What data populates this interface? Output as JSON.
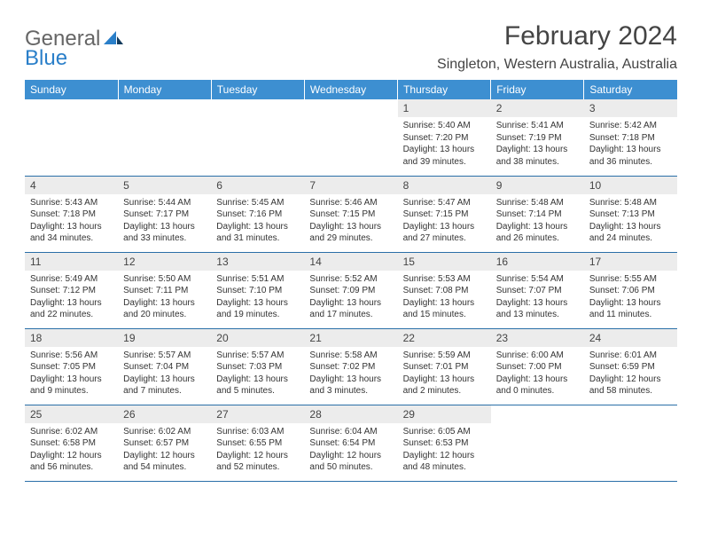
{
  "brand": {
    "general": "General",
    "blue": "Blue"
  },
  "title": "February 2024",
  "location": "Singleton, Western Australia, Australia",
  "colors": {
    "header_bg": "#3d8fd1",
    "header_text": "#ffffff",
    "daynum_bg": "#ececec",
    "row_border": "#2a6fa8",
    "text": "#333333",
    "logo_blue": "#2a7fc9"
  },
  "dayHeaders": [
    "Sunday",
    "Monday",
    "Tuesday",
    "Wednesday",
    "Thursday",
    "Friday",
    "Saturday"
  ],
  "weeks": [
    [
      null,
      null,
      null,
      null,
      {
        "n": "1",
        "sr": "5:40 AM",
        "ss": "7:20 PM",
        "dl": "13 hours and 39 minutes."
      },
      {
        "n": "2",
        "sr": "5:41 AM",
        "ss": "7:19 PM",
        "dl": "13 hours and 38 minutes."
      },
      {
        "n": "3",
        "sr": "5:42 AM",
        "ss": "7:18 PM",
        "dl": "13 hours and 36 minutes."
      }
    ],
    [
      {
        "n": "4",
        "sr": "5:43 AM",
        "ss": "7:18 PM",
        "dl": "13 hours and 34 minutes."
      },
      {
        "n": "5",
        "sr": "5:44 AM",
        "ss": "7:17 PM",
        "dl": "13 hours and 33 minutes."
      },
      {
        "n": "6",
        "sr": "5:45 AM",
        "ss": "7:16 PM",
        "dl": "13 hours and 31 minutes."
      },
      {
        "n": "7",
        "sr": "5:46 AM",
        "ss": "7:15 PM",
        "dl": "13 hours and 29 minutes."
      },
      {
        "n": "8",
        "sr": "5:47 AM",
        "ss": "7:15 PM",
        "dl": "13 hours and 27 minutes."
      },
      {
        "n": "9",
        "sr": "5:48 AM",
        "ss": "7:14 PM",
        "dl": "13 hours and 26 minutes."
      },
      {
        "n": "10",
        "sr": "5:48 AM",
        "ss": "7:13 PM",
        "dl": "13 hours and 24 minutes."
      }
    ],
    [
      {
        "n": "11",
        "sr": "5:49 AM",
        "ss": "7:12 PM",
        "dl": "13 hours and 22 minutes."
      },
      {
        "n": "12",
        "sr": "5:50 AM",
        "ss": "7:11 PM",
        "dl": "13 hours and 20 minutes."
      },
      {
        "n": "13",
        "sr": "5:51 AM",
        "ss": "7:10 PM",
        "dl": "13 hours and 19 minutes."
      },
      {
        "n": "14",
        "sr": "5:52 AM",
        "ss": "7:09 PM",
        "dl": "13 hours and 17 minutes."
      },
      {
        "n": "15",
        "sr": "5:53 AM",
        "ss": "7:08 PM",
        "dl": "13 hours and 15 minutes."
      },
      {
        "n": "16",
        "sr": "5:54 AM",
        "ss": "7:07 PM",
        "dl": "13 hours and 13 minutes."
      },
      {
        "n": "17",
        "sr": "5:55 AM",
        "ss": "7:06 PM",
        "dl": "13 hours and 11 minutes."
      }
    ],
    [
      {
        "n": "18",
        "sr": "5:56 AM",
        "ss": "7:05 PM",
        "dl": "13 hours and 9 minutes."
      },
      {
        "n": "19",
        "sr": "5:57 AM",
        "ss": "7:04 PM",
        "dl": "13 hours and 7 minutes."
      },
      {
        "n": "20",
        "sr": "5:57 AM",
        "ss": "7:03 PM",
        "dl": "13 hours and 5 minutes."
      },
      {
        "n": "21",
        "sr": "5:58 AM",
        "ss": "7:02 PM",
        "dl": "13 hours and 3 minutes."
      },
      {
        "n": "22",
        "sr": "5:59 AM",
        "ss": "7:01 PM",
        "dl": "13 hours and 2 minutes."
      },
      {
        "n": "23",
        "sr": "6:00 AM",
        "ss": "7:00 PM",
        "dl": "13 hours and 0 minutes."
      },
      {
        "n": "24",
        "sr": "6:01 AM",
        "ss": "6:59 PM",
        "dl": "12 hours and 58 minutes."
      }
    ],
    [
      {
        "n": "25",
        "sr": "6:02 AM",
        "ss": "6:58 PM",
        "dl": "12 hours and 56 minutes."
      },
      {
        "n": "26",
        "sr": "6:02 AM",
        "ss": "6:57 PM",
        "dl": "12 hours and 54 minutes."
      },
      {
        "n": "27",
        "sr": "6:03 AM",
        "ss": "6:55 PM",
        "dl": "12 hours and 52 minutes."
      },
      {
        "n": "28",
        "sr": "6:04 AM",
        "ss": "6:54 PM",
        "dl": "12 hours and 50 minutes."
      },
      {
        "n": "29",
        "sr": "6:05 AM",
        "ss": "6:53 PM",
        "dl": "12 hours and 48 minutes."
      },
      null,
      null
    ]
  ],
  "labels": {
    "sunrise": "Sunrise:",
    "sunset": "Sunset:",
    "daylight": "Daylight:"
  }
}
